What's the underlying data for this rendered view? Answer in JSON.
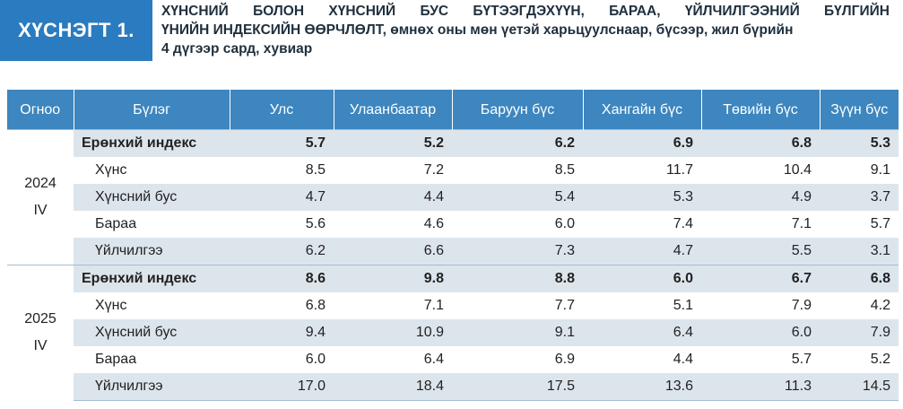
{
  "figure": {
    "badge": "ХҮСНЭГТ 1.",
    "title_line1_words": [
      "ХҮНСНИЙ",
      "БОЛОН",
      "ХҮНСНИЙ",
      "БУС",
      "БҮТЭЭГДЭХҮҮН,",
      "БАРАА,",
      "ҮЙЛЧИЛГЭЭНИЙ",
      "БҮЛГИЙН"
    ],
    "title_line2": "ҮНИЙН ИНДЕКСИЙН ӨӨРЧЛӨЛТ, өмнөх оны мөн үетэй харьцуулснаар, бүсээр, жил бүрийн",
    "title_line3": "4 дүгээр сард, хувиар"
  },
  "table": {
    "headers": [
      "Огноо",
      "Бүлэг",
      "Улс",
      "Улаанбаатар",
      "Баруун бүс",
      "Хангайн бүс",
      "Төвийн бүс",
      "Зүүн бүс"
    ],
    "groups": [
      {
        "date_line1": "2024",
        "date_line2": "IV",
        "rows": [
          {
            "label": "Ерөнхий индекс",
            "values": [
              "5.7",
              "5.2",
              "6.2",
              "6.9",
              "6.8",
              "5.3"
            ]
          },
          {
            "label": "Хүнс",
            "values": [
              "8.5",
              "7.2",
              "8.5",
              "11.7",
              "10.4",
              "9.1"
            ]
          },
          {
            "label": "Хүнсний бус",
            "values": [
              "4.7",
              "4.4",
              "5.4",
              "5.3",
              "4.9",
              "3.7"
            ]
          },
          {
            "label": "Бараа",
            "values": [
              "5.6",
              "4.6",
              "6.0",
              "7.4",
              "7.1",
              "5.7"
            ]
          },
          {
            "label": "Үйлчилгээ",
            "values": [
              "6.2",
              "6.6",
              "7.3",
              "4.7",
              "5.5",
              "3.1"
            ]
          }
        ]
      },
      {
        "date_line1": "2025",
        "date_line2": "IV",
        "rows": [
          {
            "label": "Ерөнхий индекс",
            "values": [
              "8.6",
              "9.8",
              "8.8",
              "6.0",
              "6.7",
              "6.8"
            ]
          },
          {
            "label": "Хүнс",
            "values": [
              "6.8",
              "7.1",
              "7.7",
              "5.1",
              "7.9",
              "4.2"
            ]
          },
          {
            "label": "Хүнсний бус",
            "values": [
              "9.4",
              "10.9",
              "9.1",
              "6.4",
              "6.0",
              "7.9"
            ]
          },
          {
            "label": "Бараа",
            "values": [
              "6.0",
              "6.4",
              "6.9",
              "4.4",
              "5.7",
              "5.2"
            ]
          },
          {
            "label": "Үйлчилгээ",
            "values": [
              "17.0",
              "18.4",
              "17.5",
              "13.6",
              "11.3",
              "14.5"
            ]
          }
        ]
      }
    ]
  }
}
